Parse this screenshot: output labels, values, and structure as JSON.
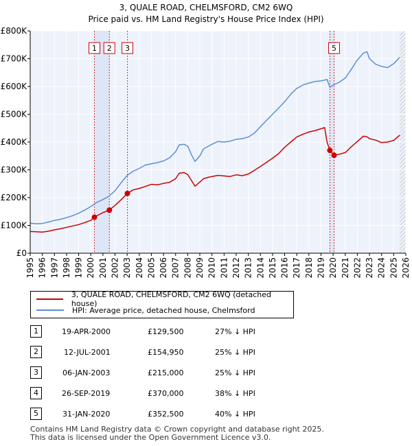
{
  "chart_data": {
    "type": "line",
    "title": "3, QUALE ROAD, CHELMSFORD, CM2 6WQ",
    "subtitle": "Price paid vs. HM Land Registry's House Price Index (HPI)",
    "xlim": [
      1995,
      2026
    ],
    "ylim": [
      0,
      800000
    ],
    "ytick_values": [
      0,
      100000,
      200000,
      300000,
      400000,
      500000,
      600000,
      700000,
      800000
    ],
    "ytick_labels": [
      "£0",
      "£100K",
      "£200K",
      "£300K",
      "£400K",
      "£500K",
      "£600K",
      "£700K",
      "£800K"
    ],
    "xtick_values": [
      1995,
      1996,
      1997,
      1998,
      1999,
      2000,
      2001,
      2002,
      2003,
      2004,
      2005,
      2006,
      2007,
      2008,
      2009,
      2010,
      2011,
      2012,
      2013,
      2014,
      2015,
      2016,
      2017,
      2018,
      2019,
      2020,
      2021,
      2022,
      2023,
      2024,
      2025,
      2026
    ],
    "xtick_labels": [
      "1995",
      "1996",
      "1997",
      "1998",
      "1999",
      "2000",
      "2001",
      "2002",
      "2003",
      "2004",
      "2005",
      "2006",
      "2007",
      "2008",
      "2009",
      "2010",
      "2011",
      "2012",
      "2013",
      "2014",
      "2015",
      "2016",
      "2017",
      "2018",
      "2019",
      "2020",
      "2021",
      "2022",
      "2023",
      "2024",
      "2025",
      "2026"
    ],
    "shaded_ranges": [
      [
        2000.3,
        2001.53
      ],
      [
        2019.73,
        2020.08
      ]
    ],
    "hatch_from": 2025.5,
    "series": [
      {
        "name": "3, QUALE ROAD, CHELMSFORD, CM2 6WQ (detached house)",
        "color": "#cc0000",
        "x": [
          1995,
          1995.5,
          1996,
          1996.5,
          1997,
          1997.5,
          1998,
          1998.5,
          1999,
          1999.5,
          2000,
          2000.3,
          2000.6,
          2001,
          2001.53,
          2002,
          2002.5,
          2003.02,
          2003.5,
          2004,
          2004.5,
          2005,
          2005.5,
          2006,
          2006.5,
          2007,
          2007.3,
          2007.7,
          2008,
          2008.3,
          2008.6,
          2009,
          2009.3,
          2009.7,
          2010,
          2010.5,
          2011,
          2011.5,
          2012,
          2012.5,
          2013,
          2013.5,
          2014,
          2014.5,
          2015,
          2015.5,
          2016,
          2016.5,
          2017,
          2017.5,
          2018,
          2018.5,
          2019,
          2019.3,
          2019.5,
          2019.73,
          2020.08,
          2020.5,
          2021,
          2021.5,
          2022,
          2022.5,
          2022.8,
          2023,
          2023.5,
          2024,
          2024.5,
          2025,
          2025.5
        ],
        "y": [
          78000,
          77000,
          76000,
          79000,
          84000,
          88000,
          93000,
          98000,
          103000,
          110000,
          118000,
          129500,
          137000,
          146000,
          154950,
          172000,
          192000,
          215000,
          228000,
          233000,
          240000,
          248000,
          246000,
          251000,
          255000,
          268000,
          288000,
          290000,
          283000,
          262000,
          241000,
          256000,
          268000,
          273000,
          276000,
          280000,
          278000,
          276000,
          282000,
          279000,
          285000,
          298000,
          312000,
          327000,
          342000,
          358000,
          381000,
          400000,
          418000,
          428000,
          436000,
          441000,
          448000,
          452000,
          400000,
          370000,
          352500,
          356000,
          362000,
          383000,
          402000,
          421000,
          419000,
          412000,
          407000,
          398000,
          400000,
          406000,
          425000
        ]
      },
      {
        "name": "HPI: Average price, detached house, Chelmsford",
        "color": "#5b8fd0",
        "x": [
          1995,
          1995.5,
          1996,
          1996.5,
          1997,
          1997.5,
          1998,
          1998.5,
          1999,
          1999.5,
          2000,
          2000.5,
          2001,
          2001.5,
          2002,
          2002.5,
          2003,
          2003.5,
          2004,
          2004.5,
          2005,
          2005.5,
          2006,
          2006.5,
          2007,
          2007.3,
          2007.7,
          2008,
          2008.3,
          2008.6,
          2009,
          2009.3,
          2009.7,
          2010,
          2010.5,
          2011,
          2011.5,
          2012,
          2012.5,
          2013,
          2013.5,
          2014,
          2014.5,
          2015,
          2015.5,
          2016,
          2016.5,
          2017,
          2017.5,
          2018,
          2018.5,
          2019,
          2019.5,
          2019.73,
          2020,
          2020.5,
          2021,
          2021.5,
          2022,
          2022.5,
          2022.8,
          2023,
          2023.5,
          2024,
          2024.5,
          2025,
          2025.5
        ],
        "y": [
          108000,
          106000,
          107000,
          112000,
          118000,
          122000,
          128000,
          135000,
          144000,
          155000,
          168000,
          183000,
          193000,
          205000,
          225000,
          253000,
          280000,
          295000,
          305000,
          317000,
          322000,
          326000,
          332000,
          343000,
          365000,
          390000,
          392000,
          385000,
          355000,
          330000,
          350000,
          375000,
          385000,
          392000,
          402000,
          400000,
          403000,
          410000,
          412000,
          418000,
          432000,
          455000,
          478000,
          500000,
          522000,
          545000,
          572000,
          593000,
          605000,
          612000,
          618000,
          620000,
          625000,
          597000,
          605000,
          615000,
          630000,
          662000,
          695000,
          720000,
          725000,
          700000,
          680000,
          672000,
          668000,
          682000,
          705000
        ]
      }
    ],
    "sales": [
      {
        "id": "1",
        "x": 2000.3,
        "y": 129500
      },
      {
        "id": "2",
        "x": 2001.53,
        "y": 154950
      },
      {
        "id": "3",
        "x": 2003.02,
        "y": 215000
      },
      {
        "id": "4",
        "x": 2019.73,
        "y": 370000
      },
      {
        "id": "5",
        "x": 2020.08,
        "y": 352500
      }
    ],
    "marker_labels": [
      {
        "id": "1",
        "x": 2000.3
      },
      {
        "id": "2",
        "x": 2001.53
      },
      {
        "id": "3",
        "x": 2003.02
      },
      {
        "id": "5",
        "x": 2020.08
      }
    ],
    "legend_position": "below"
  },
  "legend": {
    "property_label": "3, QUALE ROAD, CHELMSFORD, CM2 6WQ (detached house)",
    "hpi_label": "HPI: Average price, detached house, Chelmsford"
  },
  "sales_table": [
    {
      "id": "1",
      "date": "19-APR-2000",
      "price": "£129,500",
      "delta": "27% ↓ HPI"
    },
    {
      "id": "2",
      "date": "12-JUL-2001",
      "price": "£154,950",
      "delta": "25% ↓ HPI"
    },
    {
      "id": "3",
      "date": "06-JAN-2003",
      "price": "£215,000",
      "delta": "25% ↓ HPI"
    },
    {
      "id": "4",
      "date": "26-SEP-2019",
      "price": "£370,000",
      "delta": "38% ↓ HPI"
    },
    {
      "id": "5",
      "date": "31-JAN-2020",
      "price": "£352,500",
      "delta": "40% ↓ HPI"
    }
  ],
  "footer": {
    "line1": "Contains HM Land Registry data © Crown copyright and database right 2025.",
    "line2": "This data is licensed under the Open Government Licence v3.0."
  },
  "colors": {
    "property": "#cc0000",
    "hpi": "#5b8fd0",
    "plot_bg": "#eef2fb",
    "grid": "#ffffff",
    "shade": "#dde6f6"
  }
}
